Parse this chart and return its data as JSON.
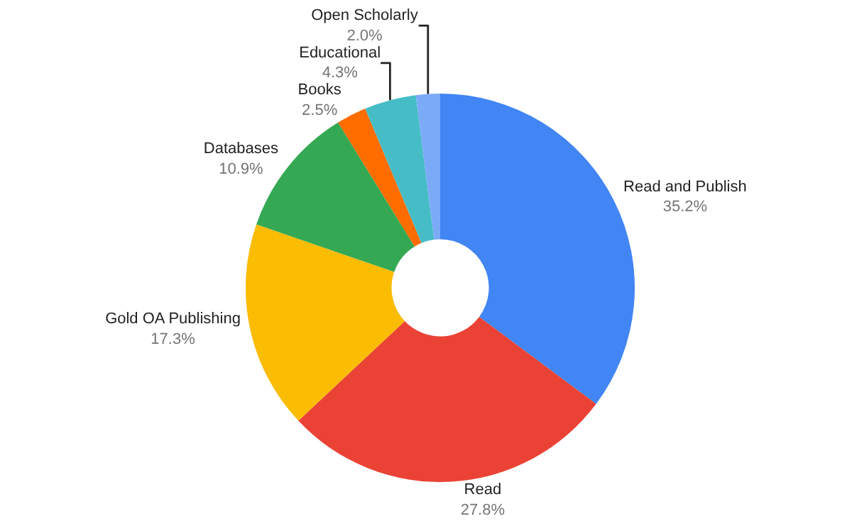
{
  "chart_data": {
    "type": "donut",
    "categories": [
      "Read and Publish",
      "Read",
      "Gold OA Publishing",
      "Databases",
      "Books",
      "Educational",
      "Open Scholarly"
    ],
    "values": [
      35.2,
      27.8,
      17.3,
      10.9,
      2.5,
      4.3,
      2.0
    ],
    "value_labels": [
      "35.2%",
      "27.8%",
      "17.3%",
      "10.9%",
      "2.5%",
      "4.3%",
      "2.0%"
    ],
    "colors": [
      "#4285f4",
      "#ea4335",
      "#fbbc04",
      "#34a853",
      "#ff6d01",
      "#46bdc6",
      "#7baaf7"
    ],
    "legend": false
  }
}
